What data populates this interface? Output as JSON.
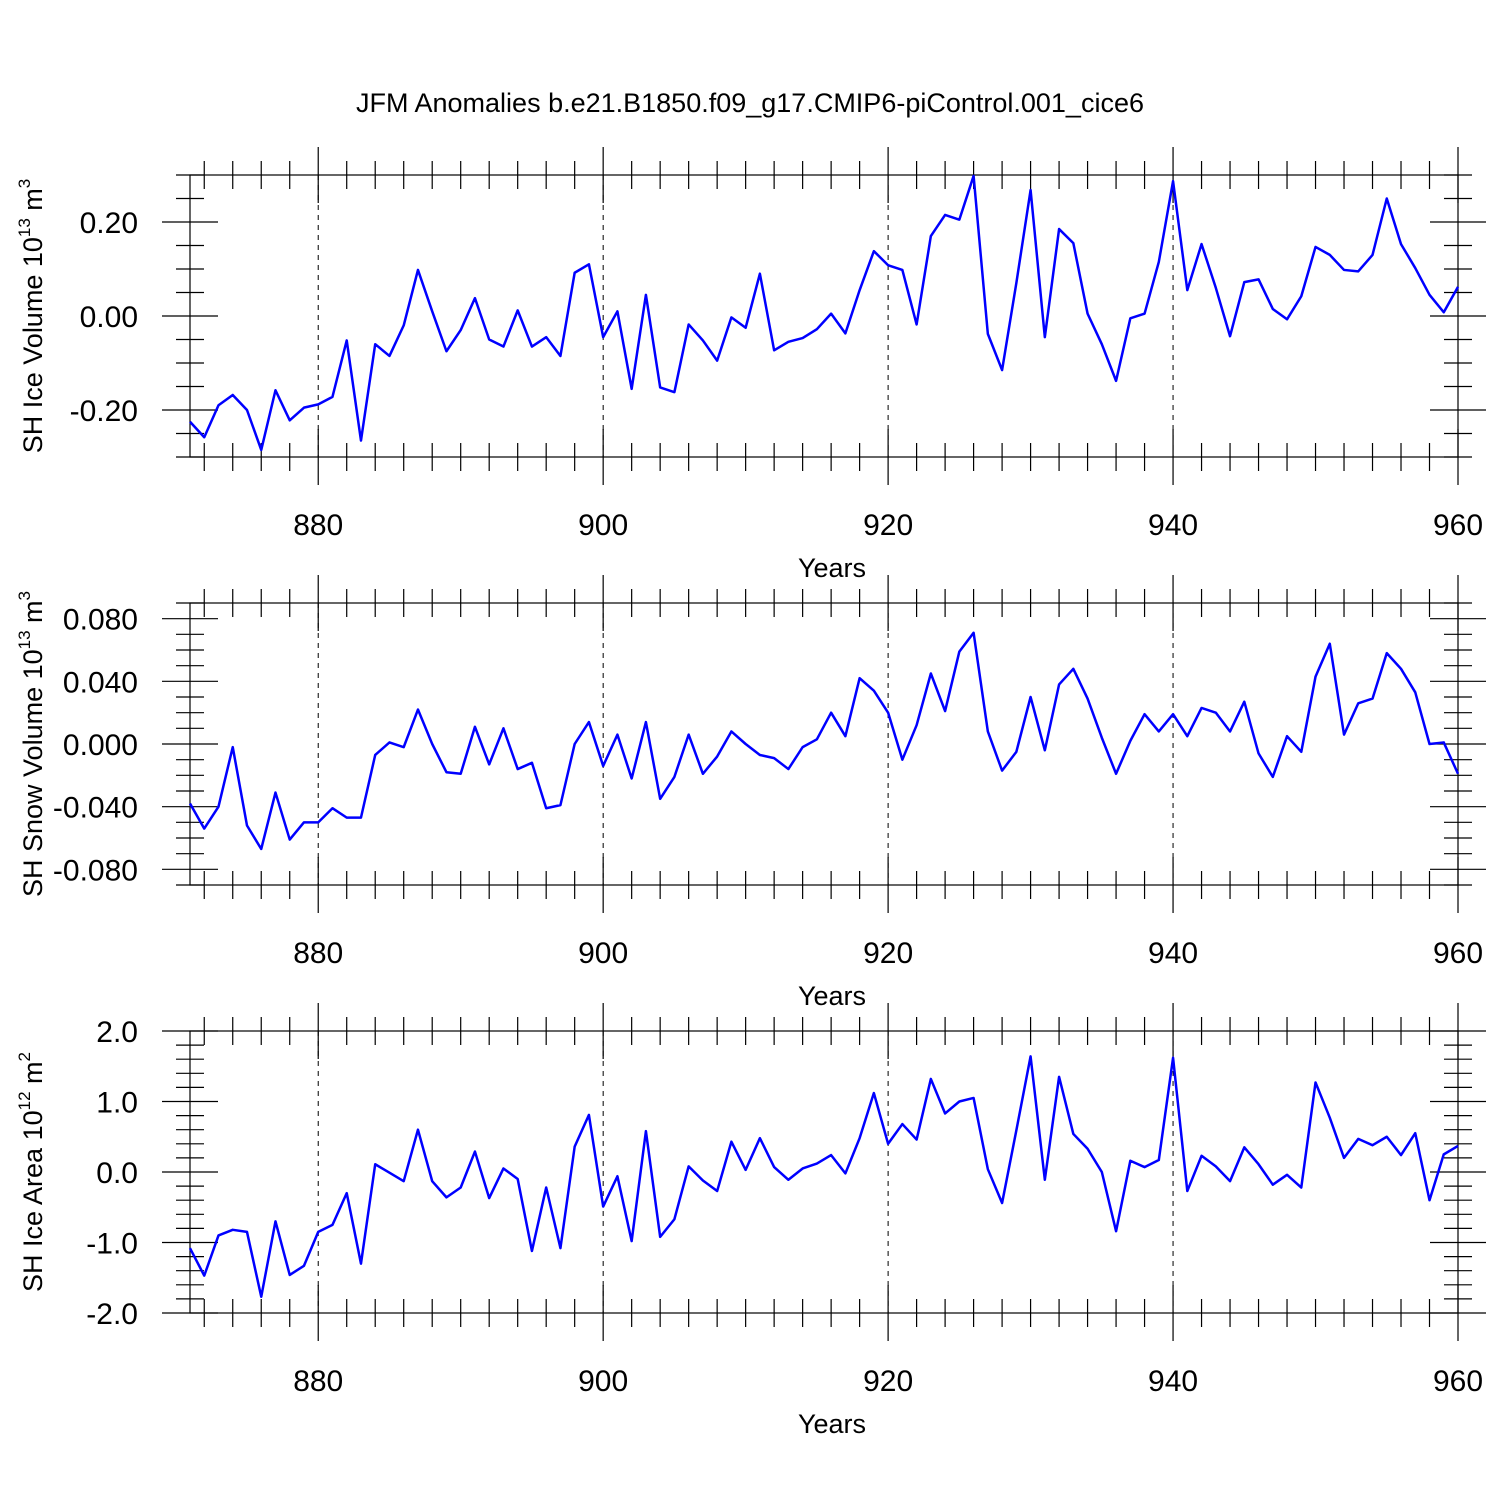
{
  "title": "JFM Anomalies b.e21.B1850.f09_g17.CMIP6-piControl.001_cice6",
  "line_color": "#0000ff",
  "chart_data": [
    {
      "type": "line",
      "ylabel": "SH Ice Volume 10",
      "ylabel_exp": "13",
      "ylabel_unit": " m",
      "ylabel_unit_exp": "3",
      "xlabel": "Years",
      "xlim": [
        871,
        960
      ],
      "ylim": [
        -0.3,
        0.3
      ],
      "xticks": [
        880,
        900,
        920,
        940,
        960
      ],
      "xtick_labels": [
        "880",
        "900",
        "920",
        "940",
        "960"
      ],
      "yticks": [
        -0.2,
        0.0,
        0.2
      ],
      "ytick_labels": [
        "-0.20",
        "0.00",
        "0.20"
      ],
      "y_minor_step": 0.05,
      "x_minor_step": 2,
      "grid": "vertical dashed at major x ticks",
      "x": [
        871,
        872,
        873,
        874,
        875,
        876,
        877,
        878,
        879,
        880,
        881,
        882,
        883,
        884,
        885,
        886,
        887,
        888,
        889,
        890,
        891,
        892,
        893,
        894,
        895,
        896,
        897,
        898,
        899,
        900,
        901,
        902,
        903,
        904,
        905,
        906,
        907,
        908,
        909,
        910,
        911,
        912,
        913,
        914,
        915,
        916,
        917,
        918,
        919,
        920,
        921,
        922,
        923,
        924,
        925,
        926,
        927,
        928,
        929,
        930,
        931,
        932,
        933,
        934,
        935,
        936,
        937,
        938,
        939,
        940,
        941,
        942,
        943,
        944,
        945,
        946,
        947,
        948,
        949,
        950,
        951,
        952,
        953,
        954,
        955,
        956,
        957,
        958,
        959,
        960
      ],
      "series": [
        {
          "values": [
            -0.225,
            -0.258,
            -0.19,
            -0.168,
            -0.2,
            -0.285,
            -0.158,
            -0.222,
            -0.195,
            -0.188,
            -0.172,
            -0.052,
            -0.265,
            -0.06,
            -0.085,
            -0.02,
            0.098,
            0.01,
            -0.075,
            -0.03,
            0.038,
            -0.05,
            -0.065,
            0.012,
            -0.065,
            -0.045,
            -0.085,
            0.092,
            0.11,
            -0.045,
            0.01,
            -0.155,
            0.045,
            -0.152,
            -0.162,
            -0.018,
            -0.052,
            -0.095,
            -0.003,
            -0.025,
            0.09,
            -0.073,
            -0.055,
            -0.047,
            -0.028,
            0.005,
            -0.037,
            0.055,
            0.138,
            0.108,
            0.098,
            -0.018,
            0.17,
            0.215,
            0.205,
            0.298,
            -0.038,
            -0.115,
            0.07,
            0.268,
            -0.045,
            0.185,
            0.155,
            0.005,
            -0.06,
            -0.138,
            -0.005,
            0.005,
            0.115,
            0.287,
            0.055,
            0.153,
            0.06,
            -0.043,
            0.072,
            0.078,
            0.015,
            -0.007,
            0.042,
            0.147,
            0.13,
            0.098,
            0.095,
            0.13,
            0.25,
            0.153,
            0.102,
            0.045,
            0.008,
            0.062
          ]
        }
      ]
    },
    {
      "type": "line",
      "ylabel": "SH Snow Volume 10",
      "ylabel_exp": "13",
      "ylabel_unit": " m",
      "ylabel_unit_exp": "3",
      "xlabel": "Years",
      "xlim": [
        871,
        960
      ],
      "ylim": [
        -0.09,
        0.09
      ],
      "xticks": [
        880,
        900,
        920,
        940,
        960
      ],
      "xtick_labels": [
        "880",
        "900",
        "920",
        "940",
        "960"
      ],
      "yticks": [
        -0.08,
        -0.04,
        0.0,
        0.04,
        0.08
      ],
      "ytick_labels": [
        "-0.080",
        "-0.040",
        "0.000",
        "0.040",
        "0.080"
      ],
      "y_minor_step": 0.01,
      "x_minor_step": 2,
      "grid": "vertical dashed at major x ticks",
      "x": [
        871,
        872,
        873,
        874,
        875,
        876,
        877,
        878,
        879,
        880,
        881,
        882,
        883,
        884,
        885,
        886,
        887,
        888,
        889,
        890,
        891,
        892,
        893,
        894,
        895,
        896,
        897,
        898,
        899,
        900,
        901,
        902,
        903,
        904,
        905,
        906,
        907,
        908,
        909,
        910,
        911,
        912,
        913,
        914,
        915,
        916,
        917,
        918,
        919,
        920,
        921,
        922,
        923,
        924,
        925,
        926,
        927,
        928,
        929,
        930,
        931,
        932,
        933,
        934,
        935,
        936,
        937,
        938,
        939,
        940,
        941,
        942,
        943,
        944,
        945,
        946,
        947,
        948,
        949,
        950,
        951,
        952,
        953,
        954,
        955,
        956,
        957,
        958,
        959,
        960
      ],
      "series": [
        {
          "values": [
            -0.038,
            -0.054,
            -0.04,
            -0.002,
            -0.052,
            -0.067,
            -0.031,
            -0.061,
            -0.05,
            -0.05,
            -0.041,
            -0.047,
            -0.047,
            -0.007,
            0.001,
            -0.002,
            0.022,
            0.0,
            -0.018,
            -0.019,
            0.011,
            -0.013,
            0.01,
            -0.016,
            -0.012,
            -0.041,
            -0.039,
            0.0,
            0.014,
            -0.014,
            0.006,
            -0.022,
            0.014,
            -0.035,
            -0.021,
            0.006,
            -0.019,
            -0.008,
            0.008,
            0.0,
            -0.007,
            -0.009,
            -0.016,
            -0.002,
            0.003,
            0.02,
            0.005,
            0.042,
            0.034,
            0.02,
            -0.01,
            0.012,
            0.045,
            0.021,
            0.059,
            0.071,
            0.008,
            -0.017,
            -0.005,
            0.03,
            -0.004,
            0.038,
            0.048,
            0.029,
            0.004,
            -0.019,
            0.002,
            0.019,
            0.008,
            0.019,
            0.005,
            0.023,
            0.02,
            0.008,
            0.027,
            -0.006,
            -0.021,
            0.005,
            -0.005,
            0.043,
            0.064,
            0.006,
            0.026,
            0.029,
            0.058,
            0.048,
            0.033,
            0.0,
            0.001,
            -0.019
          ]
        }
      ]
    },
    {
      "type": "line",
      "ylabel": "SH Ice Area 10",
      "ylabel_exp": "12",
      "ylabel_unit": " m",
      "ylabel_unit_exp": "2",
      "xlabel": "Years",
      "xlim": [
        871,
        960
      ],
      "ylim": [
        -2.0,
        2.0
      ],
      "xticks": [
        880,
        900,
        920,
        940,
        960
      ],
      "xtick_labels": [
        "880",
        "900",
        "920",
        "940",
        "960"
      ],
      "yticks": [
        -2.0,
        -1.0,
        0.0,
        1.0,
        2.0
      ],
      "ytick_labels": [
        "-2.0",
        "-1.0",
        "0.0",
        "1.0",
        "2.0"
      ],
      "y_minor_step": 0.2,
      "x_minor_step": 2,
      "grid": "vertical dashed at major x ticks",
      "x": [
        871,
        872,
        873,
        874,
        875,
        876,
        877,
        878,
        879,
        880,
        881,
        882,
        883,
        884,
        885,
        886,
        887,
        888,
        889,
        890,
        891,
        892,
        893,
        894,
        895,
        896,
        897,
        898,
        899,
        900,
        901,
        902,
        903,
        904,
        905,
        906,
        907,
        908,
        909,
        910,
        911,
        912,
        913,
        914,
        915,
        916,
        917,
        918,
        919,
        920,
        921,
        922,
        923,
        924,
        925,
        926,
        927,
        928,
        929,
        930,
        931,
        932,
        933,
        934,
        935,
        936,
        937,
        938,
        939,
        940,
        941,
        942,
        943,
        944,
        945,
        946,
        947,
        948,
        949,
        950,
        951,
        952,
        953,
        954,
        955,
        956,
        957,
        958,
        959,
        960
      ],
      "series": [
        {
          "values": [
            -1.08,
            -1.47,
            -0.9,
            -0.82,
            -0.85,
            -1.77,
            -0.7,
            -1.46,
            -1.33,
            -0.85,
            -0.75,
            -0.3,
            -1.3,
            0.11,
            -0.01,
            -0.13,
            0.6,
            -0.13,
            -0.36,
            -0.22,
            0.29,
            -0.37,
            0.05,
            -0.1,
            -1.12,
            -0.22,
            -1.08,
            0.36,
            0.81,
            -0.49,
            -0.06,
            -0.98,
            0.58,
            -0.92,
            -0.67,
            0.08,
            -0.12,
            -0.27,
            0.43,
            0.03,
            0.48,
            0.07,
            -0.11,
            0.05,
            0.12,
            0.24,
            -0.02,
            0.48,
            1.12,
            0.4,
            0.68,
            0.46,
            1.32,
            0.83,
            1.0,
            1.05,
            0.04,
            -0.44,
            0.59,
            1.64,
            -0.11,
            1.35,
            0.54,
            0.33,
            0.0,
            -0.84,
            0.16,
            0.07,
            0.17,
            1.62,
            -0.27,
            0.23,
            0.08,
            -0.13,
            0.35,
            0.11,
            -0.18,
            -0.04,
            -0.22,
            1.27,
            0.77,
            0.2,
            0.47,
            0.38,
            0.5,
            0.24,
            0.55,
            -0.4,
            0.25,
            0.37
          ]
        }
      ]
    }
  ]
}
